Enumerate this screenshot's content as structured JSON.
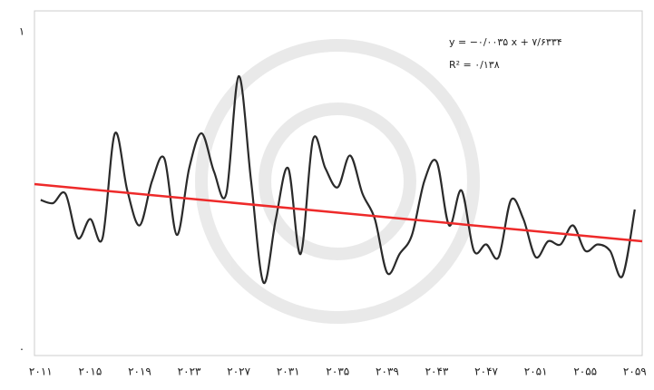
{
  "chart_data": {
    "type": "line",
    "x": [
      2011,
      2012,
      2013,
      2014,
      2015,
      2016,
      2017,
      2018,
      2019,
      2020,
      2021,
      2022,
      2023,
      2024,
      2025,
      2026,
      2027,
      2028,
      2029,
      2030,
      2031,
      2032,
      2033,
      2034,
      2035,
      2036,
      2037,
      2038,
      2039,
      2040,
      2041,
      2042,
      2043,
      2044,
      2045,
      2046,
      2047,
      2048,
      2049,
      2050,
      2051,
      2052,
      2053,
      2054,
      2055,
      2056,
      2057,
      2058,
      2059
    ],
    "series": [
      {
        "name": "series",
        "color": "#2a2a2a",
        "values": [
          0.47,
          0.46,
          0.49,
          0.35,
          0.41,
          0.35,
          0.68,
          0.5,
          0.39,
          0.53,
          0.6,
          0.36,
          0.57,
          0.68,
          0.56,
          0.49,
          0.86,
          0.53,
          0.21,
          0.41,
          0.57,
          0.3,
          0.66,
          0.57,
          0.51,
          0.61,
          0.49,
          0.41,
          0.24,
          0.3,
          0.36,
          0.53,
          0.59,
          0.39,
          0.5,
          0.31,
          0.33,
          0.29,
          0.47,
          0.41,
          0.29,
          0.34,
          0.33,
          0.39,
          0.31,
          0.33,
          0.31,
          0.23,
          0.44
        ]
      },
      {
        "name": "trend",
        "color": "#ee2a2a",
        "x": [
          2010.5,
          2059.6
        ],
        "values": [
          0.52,
          0.34
        ]
      }
    ],
    "annotations": [
      "y = −۰/۰۰۳۵ x + ۷/۶۳۳۴",
      "R² = ۰/۱۳۸"
    ],
    "xlim": [
      2010.5,
      2059.6
    ],
    "xticks": [
      {
        "value": 2011,
        "label": "۲۰۱۱"
      },
      {
        "value": 2015,
        "label": "۲۰۱۵"
      },
      {
        "value": 2019,
        "label": "۲۰۱۹"
      },
      {
        "value": 2023,
        "label": "۲۰۲۳"
      },
      {
        "value": 2027,
        "label": "۲۰۲۷"
      },
      {
        "value": 2031,
        "label": "۲۰۳۱"
      },
      {
        "value": 2035,
        "label": "۲۰۳۵"
      },
      {
        "value": 2039,
        "label": "۲۰۳۹"
      },
      {
        "value": 2043,
        "label": "۲۰۴۳"
      },
      {
        "value": 2047,
        "label": "۲۰۴۷"
      },
      {
        "value": 2051,
        "label": "۲۰۵۱"
      },
      {
        "value": 2055,
        "label": "۲۰۵۵"
      },
      {
        "value": 2059,
        "label": "۲۰۵۹"
      }
    ],
    "ylim": [
      0,
      1
    ],
    "yticks": [
      {
        "value": 0,
        "label": "۰"
      },
      {
        "value": 1,
        "label": "۱"
      }
    ]
  }
}
